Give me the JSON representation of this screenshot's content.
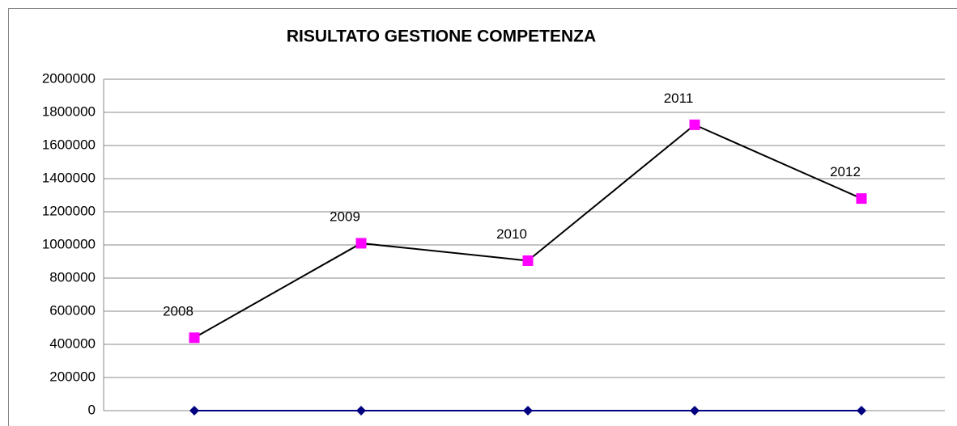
{
  "chart_data": {
    "type": "line",
    "title": "RISULTATO GESTIONE COMPETENZA",
    "categories": [
      "2008",
      "2009",
      "2010",
      "2011",
      "2012"
    ],
    "series": [
      {
        "color": "#ff00ff",
        "line_color": "#000000",
        "marker": "square",
        "values": [
          440000,
          1010000,
          905000,
          1725000,
          1280000
        ]
      },
      {
        "color": "#000080",
        "line_color": "#000080",
        "marker": "diamond",
        "values": [
          0,
          0,
          0,
          0,
          0
        ]
      }
    ],
    "ylim": [
      0,
      2000000
    ],
    "yticks": [
      0,
      200000,
      400000,
      600000,
      800000,
      1000000,
      1200000,
      1400000,
      1600000,
      1800000,
      2000000
    ],
    "grid": true
  }
}
